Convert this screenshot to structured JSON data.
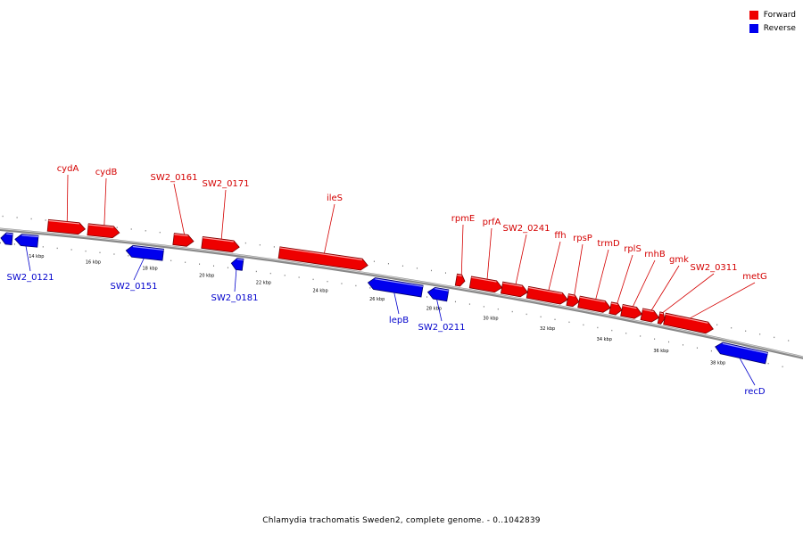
{
  "legend": {
    "forward_label": "Forward",
    "reverse_label": "Reverse",
    "forward_color": "#ee0000",
    "reverse_color": "#0000ee"
  },
  "caption": "Chlamydia trachomatis Sweden2, complete genome. - 0..1042839",
  "chart_data": {
    "type": "genome-map",
    "x_unit": "kbp",
    "xlim": [
      12.7,
      39.6
    ],
    "kbp_labels": [
      "14 kbp",
      "16 kbp",
      "18 kbp",
      "20 kbp",
      "22 kbp",
      "24 kbp",
      "26 kbp",
      "28 kbp",
      "30 kbp",
      "32 kbp",
      "34 kbp",
      "36 kbp",
      "38 kbp"
    ],
    "genes": [
      {
        "name": "",
        "strand": "reverse",
        "start": 12.7,
        "end": 13.1
      },
      {
        "name": "SW2_0121",
        "strand": "reverse",
        "start": 13.2,
        "end": 14.0
      },
      {
        "name": "cydA",
        "strand": "forward",
        "start": 14.3,
        "end": 15.6
      },
      {
        "name": "cydB",
        "strand": "forward",
        "start": 15.7,
        "end": 16.8
      },
      {
        "name": "SW2_0151",
        "strand": "reverse",
        "start": 17.1,
        "end": 18.4
      },
      {
        "name": "SW2_0161",
        "strand": "forward",
        "start": 18.7,
        "end": 19.4
      },
      {
        "name": "SW2_0171",
        "strand": "forward",
        "start": 19.7,
        "end": 21.0
      },
      {
        "name": "SW2_0181",
        "strand": "reverse",
        "start": 20.8,
        "end": 21.2
      },
      {
        "name": "ileS",
        "strand": "forward",
        "start": 22.4,
        "end": 25.5
      },
      {
        "name": "lepB",
        "strand": "reverse",
        "start": 25.6,
        "end": 27.5
      },
      {
        "name": "SW2_0211",
        "strand": "reverse",
        "start": 27.7,
        "end": 28.4
      },
      {
        "name": "rpmE",
        "strand": "forward",
        "start": 28.6,
        "end": 28.9
      },
      {
        "name": "prfA",
        "strand": "forward",
        "start": 29.1,
        "end": 30.2
      },
      {
        "name": "SW2_0241",
        "strand": "forward",
        "start": 30.2,
        "end": 31.1
      },
      {
        "name": "ffh",
        "strand": "forward",
        "start": 31.1,
        "end": 32.5
      },
      {
        "name": "rpsP",
        "strand": "forward",
        "start": 32.5,
        "end": 32.9
      },
      {
        "name": "trmD",
        "strand": "forward",
        "start": 32.9,
        "end": 34.0
      },
      {
        "name": "rplS",
        "strand": "forward",
        "start": 34.0,
        "end": 34.4
      },
      {
        "name": "rnhB",
        "strand": "forward",
        "start": 34.4,
        "end": 35.1
      },
      {
        "name": "gmk",
        "strand": "forward",
        "start": 35.1,
        "end": 35.7
      },
      {
        "name": "SW2_0311",
        "strand": "forward",
        "start": 35.7,
        "end": 35.9
      },
      {
        "name": "metG",
        "strand": "forward",
        "start": 35.9,
        "end": 37.6
      },
      {
        "name": "recD",
        "strand": "reverse",
        "start": 37.8,
        "end": 39.6
      }
    ]
  }
}
